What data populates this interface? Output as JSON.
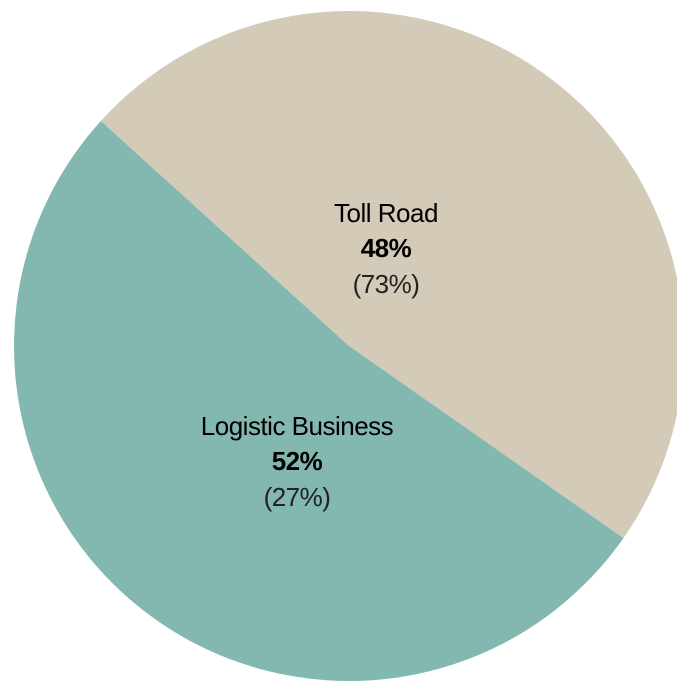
{
  "chart_data": {
    "type": "pie",
    "categories": [
      "Toll Road",
      "Logistic Business"
    ],
    "values": [
      48,
      52
    ],
    "value_labels": [
      "48%",
      "52%"
    ],
    "secondary_labels": [
      "(73%)",
      "(27%)"
    ],
    "colors": [
      "#d3cab8",
      "#82b8b0"
    ]
  }
}
